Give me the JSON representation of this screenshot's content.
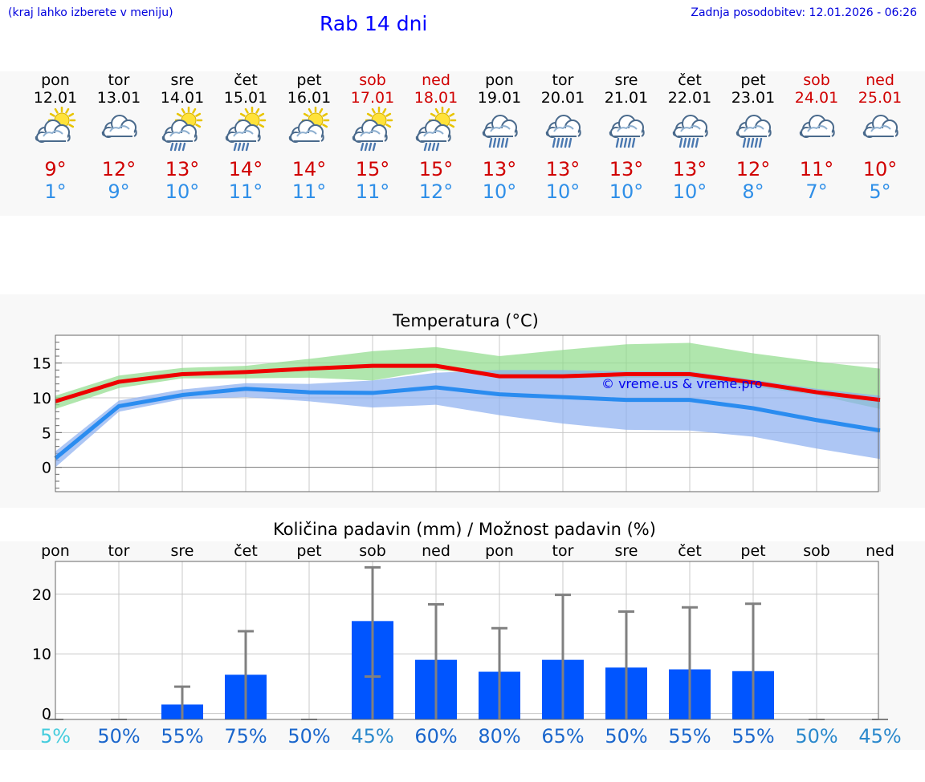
{
  "header": {
    "menu_hint": "(kraj lahko izberete v meniju)",
    "title": "Rab 14 dni",
    "last_update": "Zadnja posodobitev: 12.01.2026 - 06:26"
  },
  "days": [
    {
      "name": "pon",
      "date": "12.01",
      "weekend": false,
      "icon": "sun-cloud-icon",
      "max": "9°",
      "min": "1°"
    },
    {
      "name": "tor",
      "date": "13.01",
      "weekend": false,
      "icon": "cloud-icon",
      "max": "12°",
      "min": "9°"
    },
    {
      "name": "sre",
      "date": "14.01",
      "weekend": false,
      "icon": "sun-cloud-rain-icon",
      "max": "13°",
      "min": "10°"
    },
    {
      "name": "čet",
      "date": "15.01",
      "weekend": false,
      "icon": "sun-cloud-rain-icon",
      "max": "14°",
      "min": "11°"
    },
    {
      "name": "pet",
      "date": "16.01",
      "weekend": false,
      "icon": "sun-cloud-icon",
      "max": "14°",
      "min": "11°"
    },
    {
      "name": "sob",
      "date": "17.01",
      "weekend": true,
      "icon": "sun-cloud-rain-icon",
      "max": "15°",
      "min": "11°"
    },
    {
      "name": "ned",
      "date": "18.01",
      "weekend": true,
      "icon": "sun-cloud-rain-icon",
      "max": "15°",
      "min": "12°"
    },
    {
      "name": "pon",
      "date": "19.01",
      "weekend": false,
      "icon": "cloud-rain-icon",
      "max": "13°",
      "min": "10°"
    },
    {
      "name": "tor",
      "date": "20.01",
      "weekend": false,
      "icon": "cloud-rain-icon",
      "max": "13°",
      "min": "10°"
    },
    {
      "name": "sre",
      "date": "21.01",
      "weekend": false,
      "icon": "cloud-rain-icon",
      "max": "13°",
      "min": "10°"
    },
    {
      "name": "čet",
      "date": "22.01",
      "weekend": false,
      "icon": "cloud-rain-icon",
      "max": "13°",
      "min": "10°"
    },
    {
      "name": "pet",
      "date": "23.01",
      "weekend": false,
      "icon": "cloud-rain-icon",
      "max": "12°",
      "min": "8°"
    },
    {
      "name": "sob",
      "date": "24.01",
      "weekend": true,
      "icon": "cloud-icon",
      "max": "11°",
      "min": "7°"
    },
    {
      "name": "ned",
      "date": "25.01",
      "weekend": true,
      "icon": "cloud-icon",
      "max": "10°",
      "min": "5°"
    }
  ],
  "chart_data": [
    {
      "type": "line",
      "title": "Temperatura (°C)",
      "ylim": [
        -3.5,
        19
      ],
      "yticks": [
        0,
        5,
        10,
        15
      ],
      "watermark": "© vreme.us & vreme.pro",
      "x": [
        0,
        1,
        2,
        3,
        4,
        5,
        6,
        7,
        8,
        9,
        10,
        11,
        12,
        13
      ],
      "series": [
        {
          "name": "max",
          "color": "#ee0000",
          "values": [
            9.5,
            12.3,
            13.4,
            13.7,
            14.2,
            14.6,
            14.6,
            13.1,
            13.1,
            13.4,
            13.4,
            12.2,
            10.8,
            9.7
          ]
        },
        {
          "name": "min",
          "color": "#2a8cf0",
          "values": [
            1.3,
            8.8,
            10.4,
            11.3,
            10.8,
            10.7,
            11.5,
            10.5,
            10.1,
            9.7,
            9.7,
            8.5,
            6.8,
            5.3
          ]
        }
      ],
      "bands": [
        {
          "name": "max-range",
          "color": "#8fdc8a",
          "upper": [
            10.3,
            13.2,
            14.3,
            14.6,
            15.6,
            16.7,
            17.3,
            16.0,
            16.9,
            17.7,
            17.9,
            16.4,
            15.2,
            14.2
          ],
          "lower": [
            8.4,
            11.4,
            12.8,
            12.8,
            12.9,
            12.5,
            14.0,
            13.3,
            12.8,
            12.9,
            12.9,
            11.6,
            10.4,
            8.4
          ]
        },
        {
          "name": "min-range",
          "color": "#8aaef0",
          "upper": [
            2.3,
            9.6,
            11.2,
            12.1,
            12.0,
            12.5,
            13.6,
            14.0,
            14.0,
            13.8,
            13.8,
            12.6,
            11.3,
            10.3
          ],
          "lower": [
            0.0,
            8.0,
            9.8,
            10.1,
            9.5,
            8.6,
            9.0,
            7.5,
            6.3,
            5.4,
            5.3,
            4.4,
            2.7,
            1.2
          ]
        }
      ]
    },
    {
      "type": "bar",
      "title": "Količina padavin (mm) / Možnost padavin (%)",
      "ylim": [
        -1,
        25.5
      ],
      "yticks": [
        0,
        10,
        20
      ],
      "categories": [
        "pon",
        "tor",
        "sre",
        "čet",
        "pet",
        "sob",
        "ned",
        "pon",
        "tor",
        "sre",
        "čet",
        "pet",
        "sob",
        "ned"
      ],
      "values": [
        0,
        0,
        1.5,
        6.5,
        0,
        15.5,
        9,
        7,
        9,
        7.7,
        7.4,
        7.1,
        0,
        0
      ],
      "error_upper": [
        0,
        0,
        4.5,
        13.8,
        0,
        24.5,
        18.3,
        14.3,
        19.9,
        17.1,
        17.8,
        18.4,
        0,
        0
      ],
      "error_lower": [
        0,
        0,
        0,
        0,
        0,
        6.2,
        0,
        0,
        0,
        0,
        0,
        0,
        0,
        0
      ],
      "probabilities": [
        "5%",
        "50%",
        "55%",
        "75%",
        "50%",
        "45%",
        "60%",
        "80%",
        "65%",
        "50%",
        "55%",
        "55%",
        "50%",
        "45%"
      ],
      "probability_colors": [
        "#44ccdd",
        "#1a66cc",
        "#1a66cc",
        "#1a66cc",
        "#1a66cc",
        "#2a88cc",
        "#1a66cc",
        "#1a66cc",
        "#1a66cc",
        "#1a66cc",
        "#1a66cc",
        "#1a66cc",
        "#2a88cc",
        "#2a88cc"
      ],
      "bar_color": "#0055ff",
      "error_color": "#808080"
    }
  ]
}
